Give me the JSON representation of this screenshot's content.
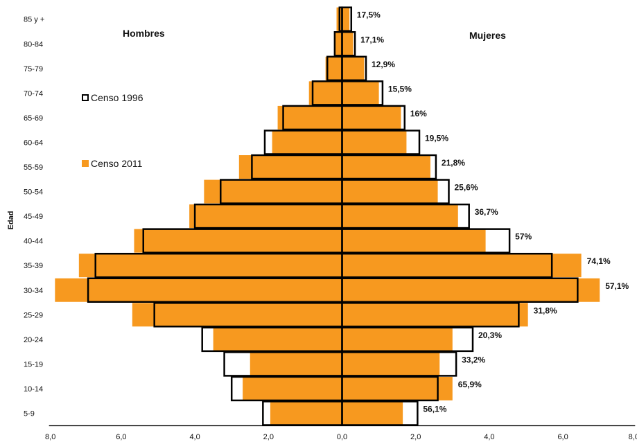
{
  "chart_data": {
    "type": "bar",
    "orientation": "horizontal-population-pyramid",
    "ylabel": "Edad",
    "xlabel": "",
    "xlim": [
      -8,
      8
    ],
    "x_ticks": [
      "8,0",
      "6,0",
      "4,0",
      "2,0",
      "0,0",
      "2,0",
      "4,0",
      "6,0",
      "8,0"
    ],
    "categories": [
      "5-9",
      "10-14",
      "15-19",
      "20-24",
      "25-29",
      "30-34",
      "35-39",
      "40-44",
      "45-49",
      "50-54",
      "55-59",
      "60-64",
      "65-69",
      "70-74",
      "75-79",
      "80-84",
      "85 y +"
    ],
    "side_labels": {
      "left": "Hombres",
      "right": "Mujeres"
    },
    "series": [
      {
        "name": "Censo 1996",
        "style": "outline",
        "color": "#000000",
        "hombres": [
          2.15,
          3.0,
          3.2,
          3.8,
          5.1,
          6.9,
          6.7,
          5.4,
          4.0,
          3.3,
          2.45,
          2.1,
          1.6,
          0.8,
          0.4,
          0.2,
          0.07
        ],
        "mujeres": [
          2.05,
          2.6,
          3.1,
          3.55,
          4.8,
          6.4,
          5.7,
          4.55,
          3.45,
          2.9,
          2.55,
          2.1,
          1.7,
          1.1,
          0.65,
          0.35,
          0.25
        ]
      },
      {
        "name": "Censo 2011",
        "style": "filled",
        "color": "#F7991F",
        "hombres": [
          1.95,
          2.7,
          2.5,
          3.5,
          5.7,
          7.8,
          7.15,
          5.65,
          4.15,
          3.75,
          2.8,
          1.9,
          1.75,
          0.9,
          0.45,
          0.2,
          0.15
        ],
        "mujeres": [
          1.65,
          3.0,
          2.65,
          3.0,
          5.05,
          7.0,
          6.5,
          3.9,
          3.15,
          2.6,
          2.4,
          1.75,
          1.6,
          1.0,
          0.6,
          0.3,
          0.2
        ]
      }
    ],
    "data_labels": [
      "56,1%",
      "65,9%",
      "33,2%",
      "20,3%",
      "31,8%",
      "57,1%",
      "74,1%",
      "57%",
      "36,7%",
      "25,6%",
      "21,8%",
      "19,5%",
      "16%",
      "15,5%",
      "12,9%",
      "17,1%",
      "17,5%"
    ],
    "legend": [
      {
        "name": "Censo 1996",
        "color": "#000000",
        "style": "outline"
      },
      {
        "name": "Censo 2011",
        "color": "#F7991F",
        "style": "filled"
      }
    ],
    "legend_position": "left",
    "grid": false
  }
}
